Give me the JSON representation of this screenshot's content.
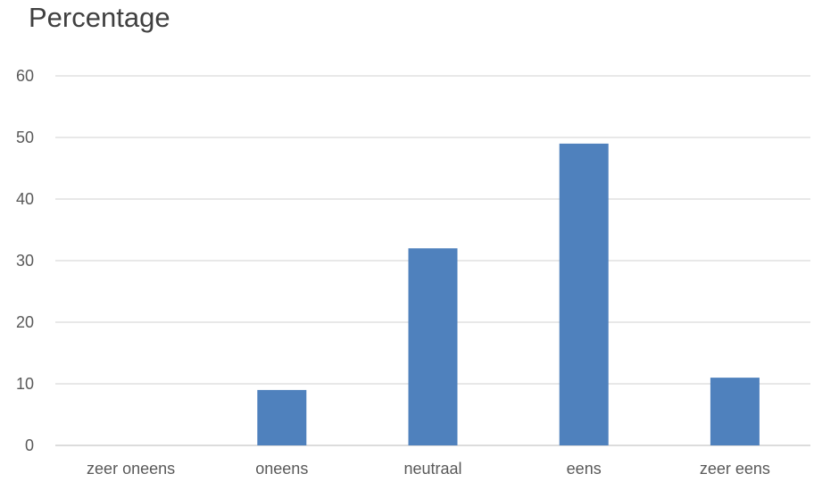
{
  "chart_data": {
    "type": "bar",
    "title": "Percentage",
    "categories": [
      "zeer oneens",
      "oneens",
      "neutraal",
      "eens",
      "zeer eens"
    ],
    "series": [
      {
        "values": [
          0,
          9,
          32,
          49,
          11
        ]
      }
    ],
    "ylim": [
      0,
      60
    ],
    "yticks": [
      0,
      10,
      20,
      30,
      40,
      50,
      60
    ],
    "xlabel": "",
    "ylabel": "",
    "grid": true,
    "legend": "none",
    "bar_color": "#4f81bd"
  }
}
